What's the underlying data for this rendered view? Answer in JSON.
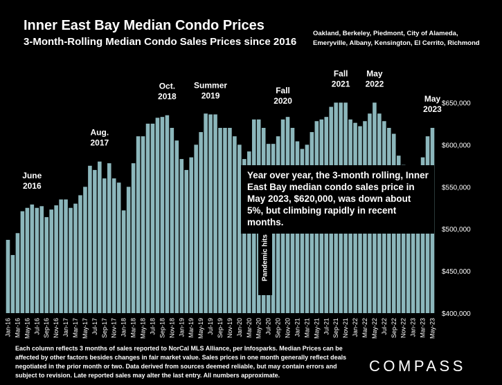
{
  "title": "Inner East Bay Median Condo Prices",
  "subtitle": "3-Month-Rolling Median Condo Sales Prices since 2016",
  "region": "Oakland, Berkeley, Piedmont, City of Alameda, Emeryville, Albany, Kensington, El Cerrito, Richmond",
  "annotation": "Year over year, the 3-month rolling, Inner East Bay median condo sales price in May 2023, $620,000, was down about 5%, but climbing rapidly in recent months.",
  "pandemic_label": "Pandemic hits",
  "footnote": "Each column reflects 3 months of sales reported to NorCal MLS Alliance, per Infosparks. Median Prices can be affected by other factors besides changes in fair market value. Sales prices in one month generally reflect deals negotiated in the prior month or two. Data derived from sources deemed reliable, but may contain errors and subject to revision. Late reported sales may alter the last entry. All numbers approximate.",
  "logo": "COMPASS",
  "colors": {
    "bar": "#8CB7BC",
    "background": "#000000",
    "text": "#FFFFFF"
  },
  "chart_data": {
    "type": "bar",
    "title": "Inner East Bay Median Condo Prices",
    "xlabel": "",
    "ylabel": "",
    "ylim": [
      400000,
      675000
    ],
    "grid": false,
    "y_ticks": [
      400000,
      450000,
      500000,
      550000,
      600000,
      650000
    ],
    "y_tick_labels": [
      "$400,000",
      "$450,000",
      "$500,000",
      "$550,000",
      "$600,000",
      "$650,000"
    ],
    "x_tick_labels": [
      "Jan-16",
      "Mar-16",
      "May-16",
      "Jul-16",
      "Sep-16",
      "Nov-16",
      "Jan-17",
      "Mar-17",
      "May-17",
      "Jul-17",
      "Sep-17",
      "Nov-17",
      "Jan-18",
      "Mar-18",
      "May-18",
      "Jul-18",
      "Sep-18",
      "Nov-18",
      "Jan-19",
      "Mar-19",
      "May-19",
      "Jul-19",
      "Sep-19",
      "Nov-19",
      "Jan-20",
      "Mar-20",
      "May-20",
      "Jul-20",
      "Sep-20",
      "Nov-20",
      "Jan-21",
      "Mar-21",
      "May-21",
      "Jul-21",
      "Sep-21",
      "Nov-21",
      "Jan-22",
      "Mar-22",
      "May-22",
      "Jul-22",
      "Sep-22",
      "Nov-22",
      "Jan-23",
      "Mar-23",
      "May-23"
    ],
    "values": [
      487000,
      469000,
      495000,
      521000,
      525000,
      529000,
      525000,
      527000,
      514000,
      523000,
      528000,
      535000,
      535000,
      525000,
      530000,
      540000,
      550000,
      575000,
      570000,
      580000,
      560000,
      578000,
      560000,
      555000,
      522000,
      550000,
      578000,
      610000,
      610000,
      625000,
      625000,
      632000,
      633000,
      635000,
      620000,
      605000,
      583000,
      570000,
      585000,
      600000,
      615000,
      637000,
      636000,
      636000,
      620000,
      620000,
      620000,
      610000,
      600000,
      583000,
      592000,
      630000,
      630000,
      620000,
      601000,
      601000,
      610000,
      630000,
      633000,
      620000,
      604000,
      595000,
      600000,
      615000,
      628000,
      630000,
      633000,
      645000,
      650000,
      650000,
      650000,
      630000,
      626000,
      622000,
      628000,
      637000,
      650000,
      637000,
      628000,
      620000,
      613000,
      587000,
      576000,
      550000,
      554000,
      551000,
      585000,
      610000,
      620000
    ],
    "annotations": [
      {
        "lines": [
          "June",
          "2016"
        ],
        "index": 5
      },
      {
        "lines": [
          "Aug.",
          "2017"
        ],
        "index": 19
      },
      {
        "lines": [
          "Oct.",
          "2018"
        ],
        "index": 33
      },
      {
        "lines": [
          "Summer",
          "2019"
        ],
        "index": 42
      },
      {
        "lines": [
          "Fall",
          "2020"
        ],
        "index": 57
      },
      {
        "lines": [
          "Fall",
          "2021"
        ],
        "index": 69
      },
      {
        "lines": [
          "May",
          "2022"
        ],
        "index": 76
      },
      {
        "lines": [
          "May",
          "2023"
        ],
        "index": 88
      }
    ]
  }
}
